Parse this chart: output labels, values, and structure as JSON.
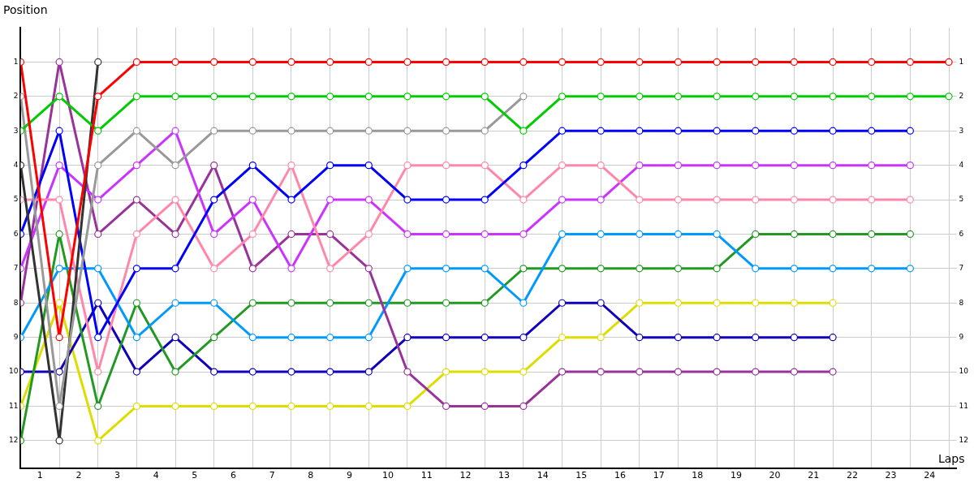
{
  "chart_data": {
    "type": "line",
    "xlabel": "Laps",
    "ylabel": "Position",
    "x": [
      0,
      1,
      2,
      3,
      4,
      5,
      6,
      7,
      8,
      9,
      10,
      11,
      12,
      13,
      14,
      15,
      16,
      17,
      18,
      19,
      20,
      21,
      22,
      23,
      24
    ],
    "xlim": [
      0,
      24.2
    ],
    "xticks": [
      {
        "value": 0,
        "label": null
      },
      {
        "value": 0.5,
        "label": "1"
      },
      {
        "value": 1,
        "label": null
      },
      {
        "value": 1.5,
        "label": "2"
      },
      {
        "value": 2,
        "label": null
      },
      {
        "value": 2.5,
        "label": "3"
      },
      {
        "value": 3,
        "label": null
      },
      {
        "value": 3.5,
        "label": "4"
      },
      {
        "value": 4,
        "label": null
      },
      {
        "value": 4.5,
        "label": "5"
      },
      {
        "value": 5,
        "label": null
      },
      {
        "value": 5.5,
        "label": "6"
      },
      {
        "value": 6,
        "label": null
      },
      {
        "value": 6.5,
        "label": "7"
      },
      {
        "value": 7,
        "label": null
      },
      {
        "value": 7.5,
        "label": "8"
      },
      {
        "value": 8,
        "label": null
      },
      {
        "value": 8.5,
        "label": "9"
      },
      {
        "value": 9,
        "label": null
      },
      {
        "value": 9.5,
        "label": "10"
      },
      {
        "value": 10,
        "label": null
      },
      {
        "value": 10.5,
        "label": "11"
      },
      {
        "value": 11,
        "label": null
      },
      {
        "value": 11.5,
        "label": "12"
      },
      {
        "value": 12,
        "label": null
      },
      {
        "value": 12.5,
        "label": "13"
      },
      {
        "value": 13,
        "label": null
      },
      {
        "value": 13.5,
        "label": "14"
      },
      {
        "value": 14,
        "label": null
      },
      {
        "value": 14.5,
        "label": "15"
      },
      {
        "value": 15,
        "label": null
      },
      {
        "value": 15.5,
        "label": "16"
      },
      {
        "value": 16,
        "label": null
      },
      {
        "value": 16.5,
        "label": "17"
      },
      {
        "value": 17,
        "label": null
      },
      {
        "value": 17.5,
        "label": "18"
      },
      {
        "value": 18,
        "label": null
      },
      {
        "value": 18.5,
        "label": "19"
      },
      {
        "value": 19,
        "label": null
      },
      {
        "value": 19.5,
        "label": "20"
      },
      {
        "value": 20,
        "label": null
      },
      {
        "value": 20.5,
        "label": "21"
      },
      {
        "value": 21,
        "label": null
      },
      {
        "value": 21.5,
        "label": "22"
      },
      {
        "value": 22,
        "label": null
      },
      {
        "value": 22.5,
        "label": "23"
      },
      {
        "value": 23,
        "label": null
      },
      {
        "value": 23.5,
        "label": "24"
      },
      {
        "value": 24,
        "label": null
      }
    ],
    "ylim": [
      12.8,
      0
    ],
    "yticks": [
      1,
      2,
      3,
      4,
      5,
      6,
      7,
      8,
      9,
      10,
      11,
      12
    ],
    "y2lim": [
      12.8,
      0
    ],
    "y2ticks": [
      1,
      2,
      3,
      4,
      5,
      6,
      7,
      8,
      9,
      10,
      11,
      12
    ],
    "grid": true,
    "legend": false,
    "marker": "circle",
    "line_style": "solid",
    "series": [
      {
        "color": "#ff0000",
        "values": [
          1,
          9,
          2,
          1,
          1,
          1,
          1,
          1,
          1,
          1,
          1,
          1,
          1,
          1,
          1,
          1,
          1,
          1,
          1,
          1,
          1,
          1,
          1,
          1,
          1
        ]
      },
      {
        "color": "#00cc00",
        "values": [
          3,
          2,
          3,
          2,
          2,
          2,
          2,
          2,
          2,
          2,
          2,
          2,
          2,
          3,
          2,
          2,
          2,
          2,
          2,
          2,
          2,
          2,
          2,
          2,
          2
        ]
      },
      {
        "color": "#999999",
        "values": [
          2,
          11,
          4,
          3,
          4,
          3,
          3,
          3,
          3,
          3,
          3,
          3,
          3,
          2,
          null,
          null,
          null,
          null,
          null,
          null,
          null,
          null,
          null,
          null,
          null
        ]
      },
      {
        "color": "#333333",
        "values": [
          4,
          12,
          1,
          null,
          null,
          null,
          null,
          null,
          null,
          null,
          null,
          null,
          null,
          null,
          null,
          null,
          null,
          null,
          null,
          null,
          null,
          null,
          null,
          null,
          null
        ]
      },
      {
        "color": "#0000ff",
        "values": [
          6,
          3,
          9,
          7,
          7,
          5,
          4,
          5,
          4,
          4,
          5,
          5,
          5,
          4,
          3,
          3,
          3,
          3,
          3,
          3,
          3,
          3,
          3,
          3,
          null
        ]
      },
      {
        "color": "#ff88aa",
        "values": [
          5,
          5,
          10,
          6,
          5,
          7,
          6,
          4,
          7,
          6,
          4,
          4,
          4,
          5,
          4,
          4,
          5,
          5,
          5,
          5,
          5,
          5,
          5,
          5,
          null
        ]
      },
      {
        "color": "#cc33ff",
        "values": [
          7,
          4,
          5,
          4,
          3,
          6,
          5,
          7,
          5,
          5,
          6,
          6,
          6,
          6,
          5,
          5,
          4,
          4,
          4,
          4,
          4,
          4,
          4,
          4,
          null
        ]
      },
      {
        "color": "#993399",
        "values": [
          8,
          1,
          6,
          5,
          6,
          4,
          7,
          6,
          6,
          7,
          10,
          11,
          11,
          11,
          10,
          10,
          10,
          10,
          10,
          10,
          10,
          10,
          null,
          null,
          null
        ]
      },
      {
        "color": "#0099ff",
        "values": [
          9,
          7,
          7,
          9,
          8,
          8,
          9,
          9,
          9,
          9,
          7,
          7,
          7,
          8,
          6,
          6,
          6,
          6,
          6,
          7,
          7,
          7,
          7,
          7,
          null
        ]
      },
      {
        "color": "#229922",
        "values": [
          12,
          6,
          11,
          8,
          10,
          9,
          8,
          8,
          8,
          8,
          8,
          8,
          8,
          7,
          7,
          7,
          7,
          7,
          7,
          6,
          6,
          6,
          6,
          6,
          null
        ]
      },
      {
        "color": "#1100bb",
        "values": [
          10,
          10,
          8,
          10,
          9,
          10,
          10,
          10,
          10,
          10,
          9,
          9,
          9,
          9,
          8,
          8,
          9,
          9,
          9,
          9,
          9,
          9,
          null,
          null,
          null
        ]
      },
      {
        "color": "#dddd00",
        "values": [
          11,
          8,
          12,
          11,
          11,
          11,
          11,
          11,
          11,
          11,
          11,
          10,
          10,
          10,
          9,
          9,
          8,
          8,
          8,
          8,
          8,
          8,
          null,
          null,
          null
        ]
      }
    ]
  }
}
